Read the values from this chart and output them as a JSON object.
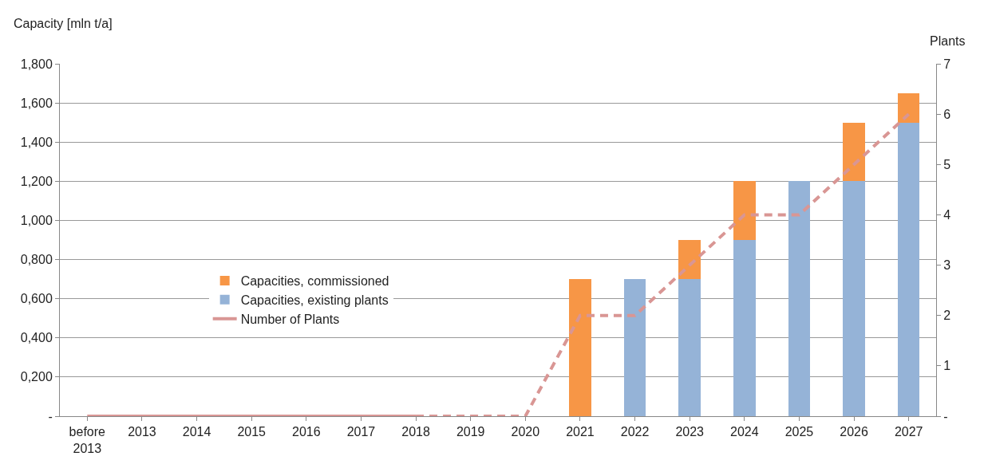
{
  "chart_data": {
    "type": "bar",
    "ylabel": "Capacity [mln t/a]",
    "y2label": "Plants",
    "categories": [
      "before\n2013",
      "2013",
      "2014",
      "2015",
      "2016",
      "2017",
      "2018",
      "2019",
      "2020",
      "2021",
      "2022",
      "2023",
      "2024",
      "2025",
      "2026",
      "2027"
    ],
    "stacked": true,
    "series": [
      {
        "name": "Capacities, existing plants",
        "color": "#95b3d7",
        "values": [
          0,
          0,
          0,
          0,
          0,
          0,
          0,
          0,
          0,
          0,
          0.7,
          0.7,
          0.9,
          1.2,
          1.2,
          1.5
        ]
      },
      {
        "name": "Capacities, commissioned",
        "color": "#f79646",
        "values": [
          0,
          0,
          0,
          0,
          0,
          0,
          0,
          0,
          0,
          0.7,
          0,
          0.2,
          0.3,
          0,
          0.3,
          0.15
        ]
      },
      {
        "name": "Number of Plants",
        "type": "line",
        "axis": "y2",
        "color": "#d99694",
        "line_style": "solid",
        "values": [
          0,
          0,
          0,
          0,
          0,
          0,
          0,
          null,
          null,
          null,
          null,
          null,
          null,
          null,
          null,
          null
        ]
      },
      {
        "type": "line",
        "axis": "y2",
        "color": "#d99694",
        "line_style": "dashed",
        "values": [
          null,
          null,
          null,
          null,
          null,
          null,
          0,
          0,
          0,
          2,
          2,
          3,
          4,
          4,
          5,
          6
        ]
      }
    ],
    "ylim": [
      0,
      1.8
    ],
    "yticks": [
      {
        "value": 0,
        "label": "-"
      },
      {
        "value": 0.2,
        "label": "0,200"
      },
      {
        "value": 0.4,
        "label": "0,400"
      },
      {
        "value": 0.6,
        "label": "0,600"
      },
      {
        "value": 0.8,
        "label": "0,800"
      },
      {
        "value": 1.0,
        "label": "1,000"
      },
      {
        "value": 1.2,
        "label": "1,200"
      },
      {
        "value": 1.4,
        "label": "1,400"
      },
      {
        "value": 1.6,
        "label": "1,600"
      },
      {
        "value": 1.8,
        "label": "1,800"
      }
    ],
    "y2lim": [
      0,
      7
    ],
    "y2ticks": [
      {
        "value": 0,
        "label": "-"
      },
      1,
      2,
      3,
      4,
      5,
      6,
      7
    ],
    "grid": "y",
    "legend": "left"
  }
}
